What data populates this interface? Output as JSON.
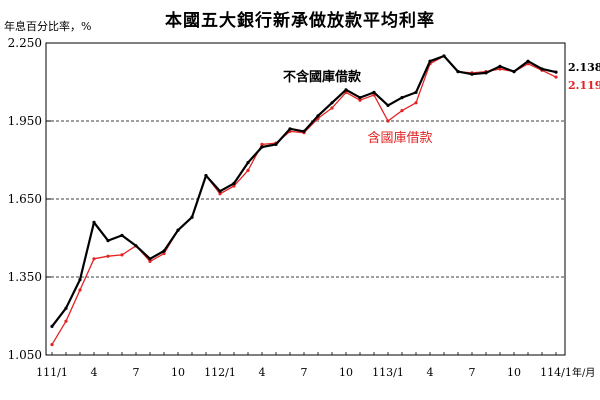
{
  "chart_data": {
    "type": "line",
    "title": "本國五大銀行新承做放款平均利率",
    "ylabel": "年息百分比率，%",
    "xlabel_suffix": "年/月",
    "ylim": [
      1.05,
      2.25
    ],
    "yticks": [
      "1.050",
      "1.350",
      "1.650",
      "1.950",
      "2.250"
    ],
    "ytick_values": [
      1.05,
      1.35,
      1.65,
      1.95,
      2.25
    ],
    "grid": "horizontal dashed at 1.350, 1.650, 1.950",
    "x": [
      "111/1",
      "111/2",
      "111/3",
      "111/4",
      "111/5",
      "111/6",
      "111/7",
      "111/8",
      "111/9",
      "111/10",
      "111/11",
      "111/12",
      "112/1",
      "112/2",
      "112/3",
      "112/4",
      "112/5",
      "112/6",
      "112/7",
      "112/8",
      "112/9",
      "112/10",
      "112/11",
      "112/12",
      "113/1",
      "113/2",
      "113/3",
      "113/4",
      "113/5",
      "113/6",
      "113/7",
      "113/8",
      "113/9",
      "113/10",
      "113/11",
      "113/12",
      "114/1"
    ],
    "xtick_labels": [
      "111/1",
      "4",
      "7",
      "10",
      "112/1",
      "4",
      "7",
      "10",
      "113/1",
      "4",
      "7",
      "10",
      "114/1"
    ],
    "xtick_indices": [
      0,
      3,
      6,
      9,
      12,
      15,
      18,
      21,
      24,
      27,
      30,
      33,
      36
    ],
    "series": [
      {
        "name": "不含國庫借款",
        "color": "#000000",
        "values": [
          1.16,
          1.23,
          1.34,
          1.56,
          1.49,
          1.51,
          1.47,
          1.42,
          1.45,
          1.53,
          1.58,
          1.74,
          1.68,
          1.71,
          1.79,
          1.85,
          1.86,
          1.92,
          1.91,
          1.97,
          2.02,
          2.07,
          2.04,
          2.06,
          2.01,
          2.04,
          2.06,
          2.18,
          2.2,
          2.14,
          2.13,
          2.135,
          2.16,
          2.14,
          2.18,
          2.15,
          2.138
        ],
        "end_label": "2.138"
      },
      {
        "name": "含國庫借款",
        "color": "#e32222",
        "values": [
          1.09,
          1.18,
          1.3,
          1.42,
          1.43,
          1.435,
          1.47,
          1.41,
          1.44,
          1.53,
          1.58,
          1.74,
          1.67,
          1.7,
          1.76,
          1.86,
          1.865,
          1.91,
          1.905,
          1.96,
          2.0,
          2.06,
          2.03,
          2.05,
          1.95,
          1.99,
          2.02,
          2.17,
          2.2,
          2.14,
          2.135,
          2.14,
          2.15,
          2.14,
          2.17,
          2.145,
          2.119
        ],
        "end_label": "2.119"
      }
    ]
  }
}
